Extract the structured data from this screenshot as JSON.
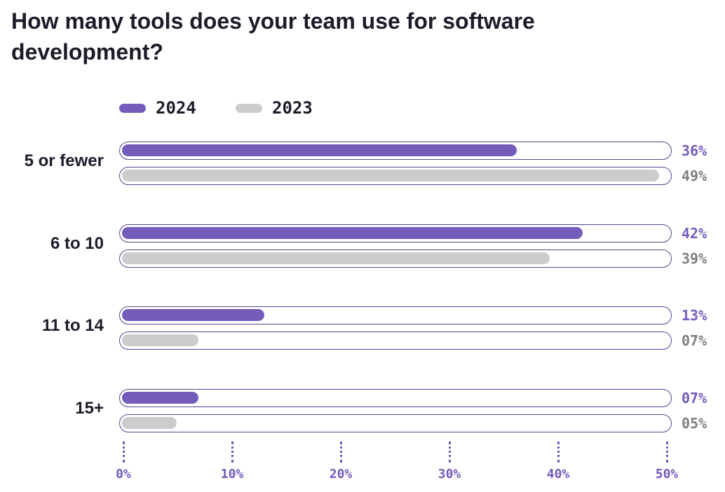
{
  "chart_data": {
    "type": "bar",
    "orientation": "horizontal",
    "title": "How many tools does your team use for software development?",
    "categories": [
      "5 or fewer",
      "6 to 10",
      "11 to 14",
      "15+"
    ],
    "series": [
      {
        "name": "2024",
        "color": "#745cbb",
        "values": [
          36,
          42,
          13,
          7
        ],
        "labels": [
          "36%",
          "42%",
          "13%",
          "07%"
        ],
        "label_color": "#745cbb"
      },
      {
        "name": "2023",
        "color": "#cccccc",
        "values": [
          49,
          39,
          7,
          5
        ],
        "labels": [
          "49%",
          "39%",
          "07%",
          "05%"
        ],
        "label_color": "#7f7f7f"
      }
    ],
    "xlim": [
      0,
      50
    ],
    "xticks": [
      "0%",
      "10%",
      "20%",
      "30%",
      "40%",
      "50%"
    ],
    "legend": "top-left",
    "grid": false
  }
}
